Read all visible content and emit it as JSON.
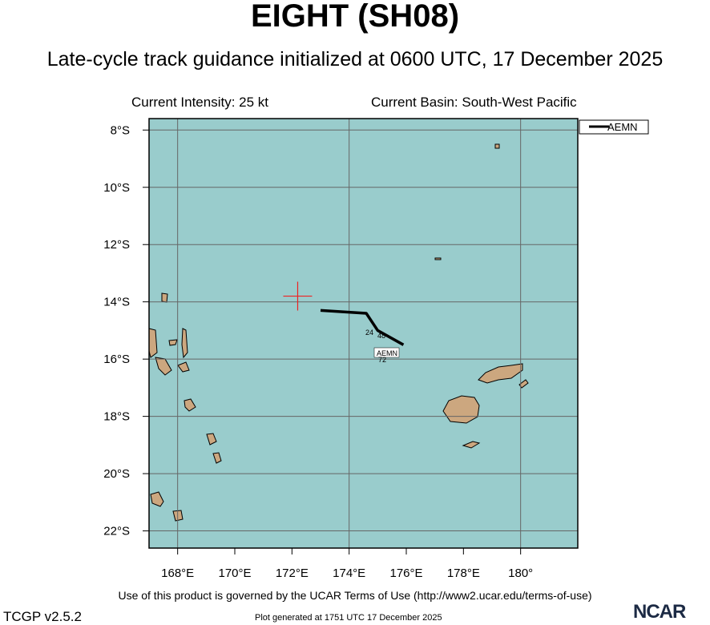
{
  "header": {
    "title": "EIGHT (SH08)",
    "subtitle": "Late-cycle track guidance initialized at 0600 UTC, 17 December 2025",
    "current_intensity": "Current Intensity: 25 kt",
    "current_basin": "Current Basin: South-West Pacific"
  },
  "map": {
    "lat_labels": [
      "8°S",
      "10°S",
      "12°S",
      "14°S",
      "16°S",
      "18°S",
      "20°S",
      "22°S"
    ],
    "lon_labels": [
      "168°E",
      "170°E",
      "172°E",
      "174°E",
      "176°E",
      "178°E",
      "180°"
    ],
    "ocean_color": "#99cccc",
    "land_color": "#cca77f",
    "current_position_color": "#ee2222",
    "current_position": {
      "lat": -13.8,
      "lon": 172.2
    }
  },
  "track": {
    "model": "AEMN",
    "color": "#000000",
    "points": [
      {
        "lon": 173.0,
        "lat": -14.3
      },
      {
        "lon": 174.6,
        "lat": -14.4
      },
      {
        "lon": 175.0,
        "lat": -15.0
      },
      {
        "lon": 175.9,
        "lat": -15.5
      }
    ],
    "hour_labels": [
      "24",
      "48",
      "72"
    ]
  },
  "legend": {
    "entries": [
      "AEMN"
    ]
  },
  "footer": {
    "terms": "Use of this product is governed by the UCAR Terms of Use (http://www2.ucar.edu/terms-of-use)",
    "version": "TCGP v2.5.2",
    "generated": "Plot generated at 1751 UTC   17 December 2025",
    "logo_text": "NCAR"
  }
}
